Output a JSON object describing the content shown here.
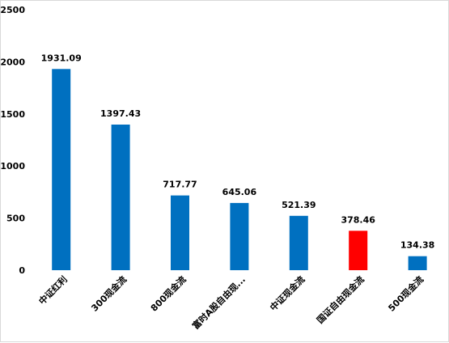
{
  "chart_data": {
    "type": "bar",
    "categories": [
      "中证红利",
      "300现金流",
      "800现金流",
      "富时A股自由现...",
      "中证现金流",
      "国证自由现金流",
      "500现金流"
    ],
    "values": [
      1931.09,
      1397.43,
      717.77,
      645.06,
      521.39,
      378.46,
      134.38
    ],
    "value_labels": [
      "1931.09",
      "1397.43",
      "717.77",
      "645.06",
      "521.39",
      "378.46",
      "134.38"
    ],
    "colors": [
      "#0070C0",
      "#0070C0",
      "#0070C0",
      "#0070C0",
      "#0070C0",
      "#FF0000",
      "#0070C0"
    ],
    "title": "",
    "xlabel": "",
    "ylabel": "",
    "ylim": [
      0,
      2500
    ],
    "yticks": [
      0,
      500,
      1000,
      1500,
      2000,
      2500
    ],
    "grid": false,
    "legend": "none"
  }
}
